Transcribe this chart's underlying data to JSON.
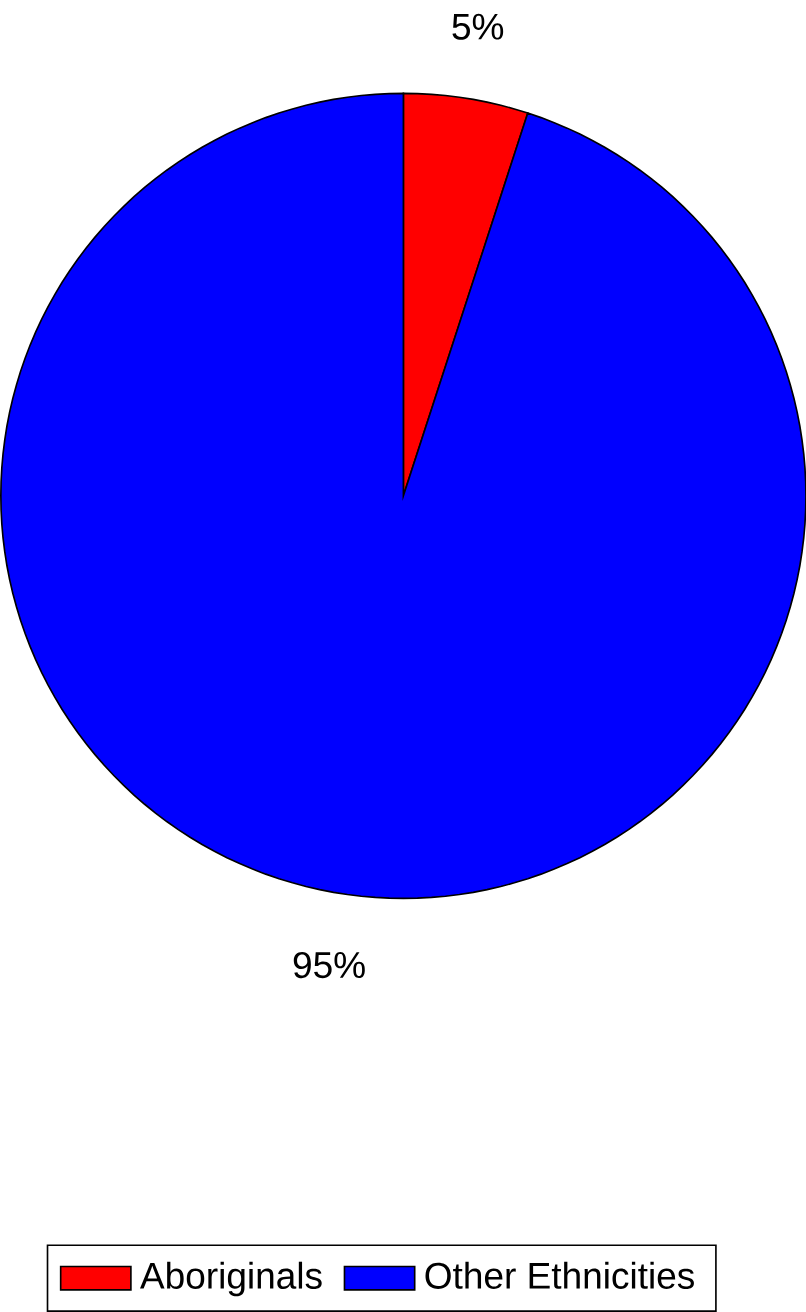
{
  "chart_data": {
    "type": "pie",
    "categories": [
      "Aboriginals",
      "Other Ethnicities"
    ],
    "values": [
      5,
      95
    ],
    "colors": [
      "#ff0000",
      "#0000ff"
    ],
    "value_labels": [
      "5%",
      "95%"
    ],
    "legend": "bottom"
  }
}
